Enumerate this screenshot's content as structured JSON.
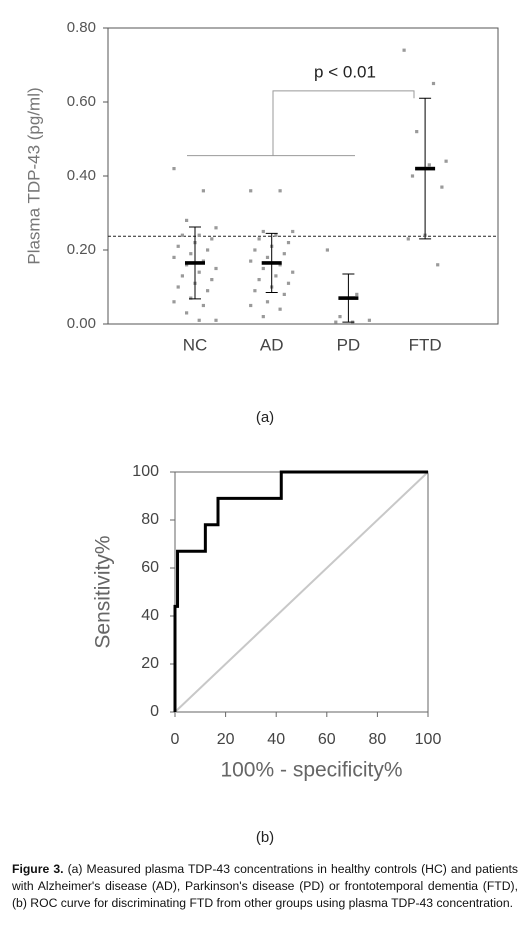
{
  "chart_data": [
    {
      "type": "strip",
      "panel_label": "(a)",
      "y_label": "Plasma TDP-43 (pg/ml)",
      "categories": [
        "NC",
        "AD",
        "PD",
        "FTD"
      ],
      "points": [
        [
          0.42,
          0.36,
          0.28,
          0.26,
          0.24,
          0.24,
          0.23,
          0.22,
          0.21,
          0.2,
          0.19,
          0.18,
          0.17,
          0.16,
          0.15,
          0.14,
          0.13,
          0.12,
          0.11,
          0.1,
          0.09,
          0.07,
          0.06,
          0.05,
          0.03,
          0.01,
          0.01
        ],
        [
          0.36,
          0.36,
          0.25,
          0.25,
          0.24,
          0.23,
          0.22,
          0.21,
          0.2,
          0.19,
          0.18,
          0.17,
          0.16,
          0.15,
          0.14,
          0.13,
          0.12,
          0.11,
          0.1,
          0.09,
          0.08,
          0.06,
          0.05,
          0.04,
          0.02
        ],
        [
          0.2,
          0.08,
          0.02,
          0.01,
          0.005,
          0.005
        ],
        [
          0.74,
          0.65,
          0.52,
          0.44,
          0.43,
          0.4,
          0.37,
          0.24,
          0.23,
          0.16
        ]
      ],
      "values": [
        0.165,
        0.165,
        0.07,
        0.42
      ],
      "errors": [
        0.097,
        0.08,
        0.065,
        0.19
      ],
      "ylim": [
        0,
        0.8
      ],
      "yticks": [
        {
          "value": 0,
          "label": "0.00"
        },
        {
          "value": 0.2,
          "label": "0.20"
        },
        {
          "value": 0.4,
          "label": "0.40"
        },
        {
          "value": 0.6,
          "label": "0.60"
        },
        {
          "value": 0.8,
          "label": "0.80"
        }
      ],
      "cutoff": 0.237,
      "annotation": "p < 0.01",
      "point_color": "#9a9a9a",
      "color": "#000000"
    },
    {
      "type": "line",
      "panel_label": "(b)",
      "y_label": "Sensitivity%",
      "x_label": "100% - specificity%",
      "series": [
        {
          "x": [
            0,
            0,
            1,
            1,
            12,
            12,
            17,
            17,
            42,
            42,
            100
          ],
          "values": [
            0,
            44,
            44,
            67,
            67,
            78,
            78,
            89,
            89,
            100,
            100
          ],
          "color": "#000000"
        },
        {
          "x": [
            0,
            100
          ],
          "values": [
            0,
            100
          ],
          "color": "#c8c8c8"
        }
      ],
      "xlim": [
        0,
        100
      ],
      "ylim": [
        0,
        100
      ],
      "xticks": [
        0,
        20,
        40,
        60,
        80,
        100
      ],
      "yticks": [
        0,
        20,
        40,
        60,
        80,
        100
      ]
    }
  ],
  "caption": {
    "label": "Figure 3.",
    "text": " (a) Measured plasma TDP-43 concentrations in healthy controls (HC) and patients with Alzheimer's disease (AD), Parkinson's disease (PD) or frontotemporal dementia (FTD), (b) ROC curve for discriminating FTD from other groups using plasma TDP-43 concentration."
  }
}
